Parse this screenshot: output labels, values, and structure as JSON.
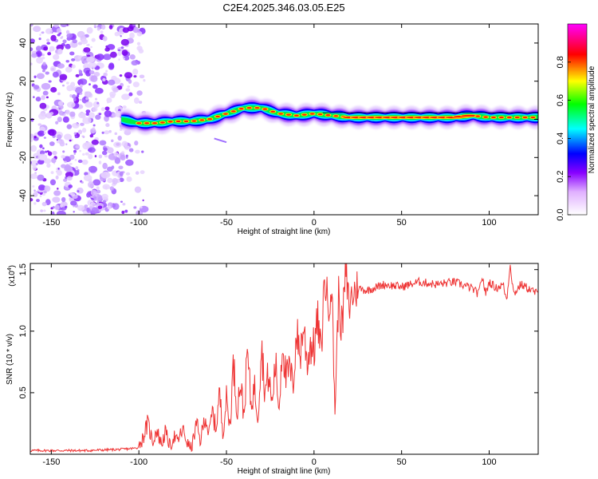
{
  "chart_data": [
    {
      "type": "heatmap",
      "title": "C2E4.2025.346.03.05.E25",
      "xlabel": "Height of straight line (km)",
      "ylabel": "Frequency (Hz)",
      "xlim": [
        -162,
        128
      ],
      "ylim": [
        -50,
        50
      ],
      "xticks": [
        -150,
        -100,
        -50,
        0,
        50,
        100
      ],
      "xtick_labels": [
        "-150",
        "-100",
        "-50",
        "0",
        "50",
        "100"
      ],
      "yticks": [
        -40,
        -20,
        0,
        20,
        40
      ],
      "ytick_labels": [
        "-40",
        "-20",
        "0",
        "20",
        "40"
      ],
      "ridge": {
        "x": [
          -110,
          -100,
          -90,
          -80,
          -70,
          -60,
          -50,
          -40,
          -30,
          -20,
          -10,
          0,
          10,
          20,
          30,
          50,
          80,
          90,
          100,
          110,
          128
        ],
        "y": [
          0,
          -2,
          -2,
          -1,
          -1,
          0,
          3,
          6,
          6,
          3,
          2,
          3,
          2,
          1,
          1,
          1,
          1,
          2,
          1,
          1,
          1
        ]
      },
      "noise_region_x": [
        -162,
        -105
      ],
      "colorbar": {
        "label": "Normalized spectral amplitude",
        "ticks": [
          0.0,
          0.2,
          0.4,
          0.6,
          0.8
        ],
        "tick_labels": [
          "0.0",
          "0.2",
          "0.4",
          "0.6",
          "0.8"
        ],
        "range": [
          0,
          1
        ],
        "colors": [
          "#ffffff",
          "#8800ff",
          "#0000ff",
          "#00ffff",
          "#00ff00",
          "#ffff00",
          "#ff0000",
          "#ff00ff"
        ]
      }
    },
    {
      "type": "line",
      "title": "",
      "xlabel": "Height of straight line (km)",
      "ylabel": "SNR (10 * v/v)",
      "y_multiplier_label": "(x10",
      "y_multiplier_exp": "4",
      "xlim": [
        -162,
        128
      ],
      "ylim": [
        0,
        1.55
      ],
      "xticks": [
        -150,
        -100,
        -50,
        0,
        50,
        100
      ],
      "xtick_labels": [
        "-150",
        "-100",
        "-50",
        "0",
        "50",
        "100"
      ],
      "yticks": [
        0.5,
        1.0,
        1.5
      ],
      "ytick_labels": [
        "0.5",
        "1.0",
        "1.5"
      ],
      "line_color": "#ee3333",
      "x": [
        -162,
        -150,
        -130,
        -110,
        -101,
        -98,
        -95,
        -92,
        -90,
        -87,
        -85,
        -82,
        -80,
        -78,
        -75,
        -72,
        -70,
        -67,
        -65,
        -62,
        -60,
        -58,
        -56,
        -54,
        -52,
        -50,
        -48,
        -46,
        -44,
        -42,
        -40,
        -38,
        -36,
        -34,
        -32,
        -30,
        -28,
        -26,
        -24,
        -22,
        -20,
        -18,
        -16,
        -14,
        -12,
        -10,
        -8,
        -6,
        -4,
        -2,
        0,
        2,
        4,
        6,
        8,
        10,
        12,
        14,
        16,
        18,
        20,
        22,
        25,
        30,
        40,
        50,
        60,
        70,
        80,
        90,
        94,
        96,
        98,
        100,
        104,
        108,
        110,
        112,
        114,
        118,
        122,
        128
      ],
      "y": [
        0.03,
        0.03,
        0.03,
        0.04,
        0.05,
        0.12,
        0.25,
        0.1,
        0.2,
        0.08,
        0.18,
        0.06,
        0.15,
        0.1,
        0.2,
        0.08,
        0.05,
        0.25,
        0.1,
        0.32,
        0.15,
        0.35,
        0.2,
        0.5,
        0.18,
        0.45,
        0.22,
        0.75,
        0.35,
        0.6,
        0.3,
        0.85,
        0.4,
        0.55,
        0.3,
        0.9,
        0.5,
        0.65,
        0.4,
        0.75,
        0.35,
        0.95,
        0.6,
        0.7,
        0.55,
        1.0,
        0.8,
        1.05,
        0.75,
        0.9,
        0.85,
        1.1,
        0.8,
        1.45,
        1.2,
        1.4,
        0.35,
        1.3,
        1.0,
        1.48,
        1.2,
        1.3,
        1.35,
        1.33,
        1.38,
        1.36,
        1.4,
        1.38,
        1.4,
        1.35,
        1.3,
        1.45,
        1.3,
        1.4,
        1.35,
        1.38,
        1.25,
        1.55,
        1.3,
        1.38,
        1.35,
        1.3
      ]
    }
  ]
}
